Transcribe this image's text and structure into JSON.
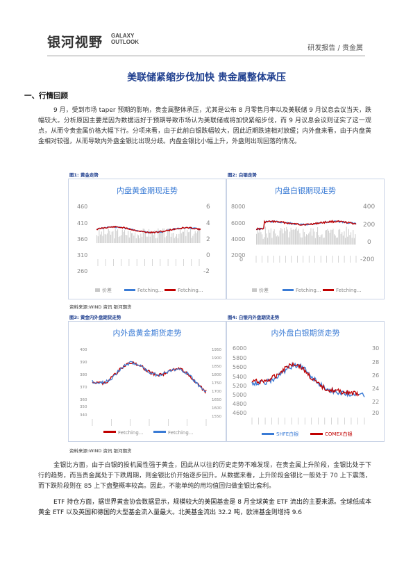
{
  "header": {
    "logo_cn": "银河视野",
    "logo_en_line1": "GALAXY",
    "logo_en_line2": "OUTLOOK",
    "right": "研发报告 / 贵金属"
  },
  "title": "美联储紧缩步伐加快 贵金属整体承压",
  "section1": "一、行情回顾",
  "para1": "9 月，受到市场 taper 预期的影响，贵金属整体承压，尤其是公布 8 月零售月率以及美联储 9 月议息会议当天，跌幅较大。分析原因主要是因为数据远好于预期导致市场认为美联储或将加快紧缩步伐，而 9 月议息会议则证实了这一观点，从而令贵金属价格大幅下行。分项来看，由于此前白银跌幅较大，因此近期跌速相对放缓；内外盘来看，由于内盘黄金相对较强，从而导致内外盘金银比出现分歧。内盘金银比小幅上升，外盘则出现回落的情况。",
  "para2": "金银比方面，由于白银的投机属性强于黄金，因此从以往的历史走势不难发现，在贵金属上升阶段，金银比处于下行的趋势，而当贵金属处于下跌周期，则金银比价开始逐步回升。从数据来看，上升阶段金银比一般处于 70 上下震荡，而下跌阶段则在 85 上下盘整概率较高。因此，不能单纯的用均值回归做金银比套利。",
  "para3": "ETF 持仓方面，据世界黄金协会数据显示，规模较大的美国基金是 8 月全球黄金 ETF 流出的主要来源。全球低成本黄金 ETF 以及英国和德国的大型基金流入量最大。北美基金流出 32.2 吨，欧洲基金则增持 9.6",
  "source1": "资料来源:WIND 资讯   银河期货",
  "source2": "资料来源:WIND 资讯   银河期货",
  "colors": {
    "accent": "#1f3f8f",
    "red": "#c00000",
    "blue": "#3a7bd5",
    "grey": "#c8c8c8"
  },
  "figures": [
    {
      "caption": "图1: 黄金走势",
      "title": "内盘黄金期现走势",
      "left_ticks": [
        "460",
        "410",
        "360",
        "310",
        "260"
      ],
      "right_ticks": [
        "6",
        "4",
        "2",
        "0",
        "-2"
      ],
      "legend": [
        "价差",
        "Fetching...",
        "Fetching..."
      ]
    },
    {
      "caption": "图2: 白银走势",
      "title": "内盘白银期现走势",
      "left_ticks": [
        "8000",
        "6000",
        "4000",
        "2000",
        "0"
      ],
      "right_ticks": [
        "400",
        "200",
        "0",
        "-200"
      ],
      "legend": [
        "价差",
        "Fetching...",
        "Fetching..."
      ]
    },
    {
      "caption": "图3: 黄金内外盘期货走势",
      "title": "内外盘黄金期货走势",
      "left_ticks": [
        "400",
        "390",
        "380",
        "370",
        "360",
        "350",
        "340"
      ],
      "right_ticks": [
        "1950",
        "1900",
        "1850",
        "1800",
        "1750",
        "1700",
        "1650",
        "1600",
        "1550"
      ],
      "legend": [
        "Fetching...",
        "Fetching..."
      ]
    },
    {
      "caption": "图4: 白银内外盘期货走势",
      "title": "内外盘白银期货走势",
      "left_ticks": [
        "6000",
        "5800",
        "5600",
        "5400",
        "5200",
        "5000",
        "4800",
        "4600"
      ],
      "right_ticks": [
        "30",
        "28",
        "26",
        "24",
        "22",
        "20"
      ],
      "legend": [
        "SHFE白银",
        "COMEX白银"
      ]
    }
  ]
}
